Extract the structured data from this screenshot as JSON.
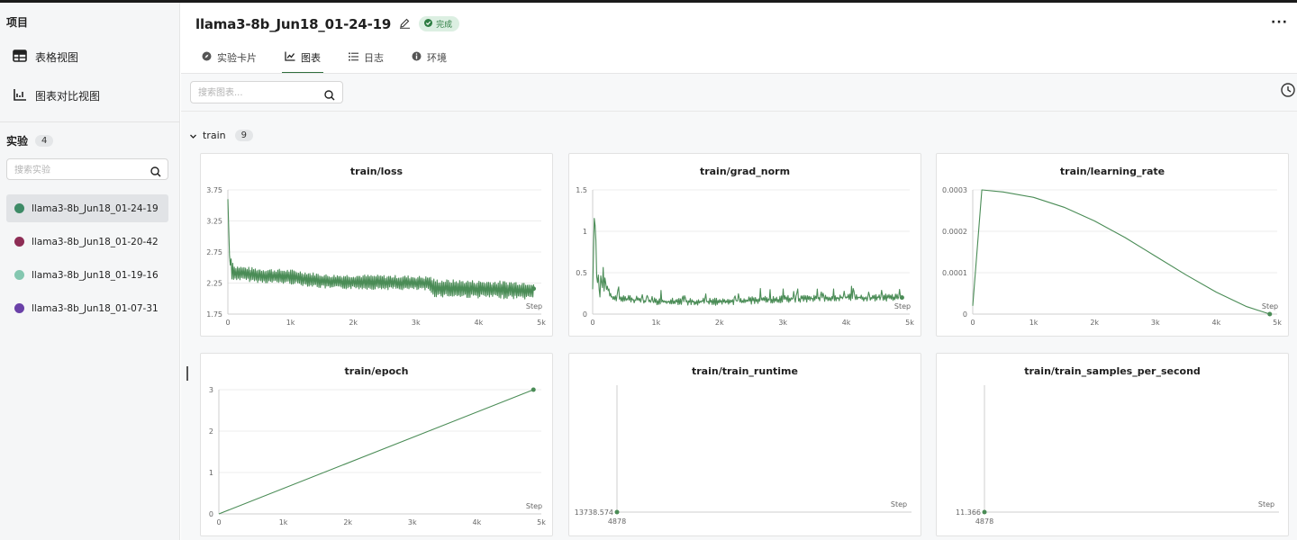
{
  "sidebar": {
    "title": "项目",
    "views": [
      {
        "label": "表格视图",
        "icon": "table-icon"
      },
      {
        "label": "图表对比视图",
        "icon": "chart-compare-icon"
      }
    ],
    "experiments_title": "实验",
    "experiments_count": "4",
    "search_placeholder": "搜索实验",
    "experiments": [
      {
        "name": "llama3-8b_Jun18_01-24-19",
        "color": "#3d8a66"
      },
      {
        "name": "llama3-8b_Jun18_01-20-42",
        "color": "#8e2d55"
      },
      {
        "name": "llama3-8b_Jun18_01-19-16",
        "color": "#84c7b0"
      },
      {
        "name": "llama3-8b_Jun18_01-07-31",
        "color": "#6a41a8"
      }
    ]
  },
  "header": {
    "run_name": "llama3-8b_Jun18_01-24-19",
    "status": "完成",
    "tabs": [
      {
        "label": "实验卡片",
        "icon": "compass-icon"
      },
      {
        "label": "图表",
        "icon": "line-chart-icon"
      },
      {
        "label": "日志",
        "icon": "list-icon"
      },
      {
        "label": "环境",
        "icon": "info-icon"
      }
    ],
    "active_tab": 1
  },
  "toolbar": {
    "search_placeholder": "搜索图表..."
  },
  "group": {
    "name": "train",
    "count": "9"
  },
  "colors": {
    "series": "#4a8c56",
    "accent": "#2f6f3e"
  },
  "charts": [
    {
      "title": "train/loss",
      "step_label": "Step"
    },
    {
      "title": "train/grad_norm",
      "step_label": "Step"
    },
    {
      "title": "train/learning_rate",
      "step_label": "Step"
    },
    {
      "title": "train/epoch",
      "step_label": "Step"
    },
    {
      "title": "train/train_runtime",
      "step_label": "Step"
    },
    {
      "title": "train/train_samples_per_second",
      "step_label": "Step"
    }
  ],
  "chart_data": [
    {
      "type": "line",
      "title": "train/loss",
      "xlabel": "Step",
      "xlim": [
        0,
        5000
      ],
      "ylim": [
        1.75,
        3.75
      ],
      "xticks": [
        "0",
        "1k",
        "2k",
        "3k",
        "4k",
        "5k"
      ],
      "yticks": [
        "1.75",
        "2.25",
        "2.75",
        "3.25",
        "3.75"
      ],
      "series": [
        {
          "x": [
            0,
            30,
            100,
            500,
            1000,
            1600,
            2000,
            3000,
            3200,
            3300,
            4000,
            4878
          ],
          "y": [
            3.6,
            2.55,
            2.45,
            2.4,
            2.38,
            2.3,
            2.3,
            2.28,
            2.27,
            2.2,
            2.18,
            2.16
          ]
        }
      ]
    },
    {
      "type": "line",
      "title": "train/grad_norm",
      "xlabel": "Step",
      "xlim": [
        0,
        5000
      ],
      "ylim": [
        0,
        1.5
      ],
      "xticks": [
        "0",
        "1k",
        "2k",
        "3k",
        "4k",
        "5k"
      ],
      "yticks": [
        "0",
        "0.5",
        "1",
        "1.5"
      ],
      "series": [
        {
          "x": [
            0,
            30,
            60,
            100,
            150,
            300,
            1000,
            2000,
            3000,
            4000,
            4878
          ],
          "y": [
            0.3,
            1.3,
            0.5,
            0.2,
            0.45,
            0.2,
            0.15,
            0.15,
            0.18,
            0.2,
            0.2
          ]
        }
      ]
    },
    {
      "type": "line",
      "title": "train/learning_rate",
      "xlabel": "Step",
      "xlim": [
        0,
        5000
      ],
      "ylim": [
        0,
        0.0003
      ],
      "xticks": [
        "0",
        "1k",
        "2k",
        "3k",
        "4k",
        "5k"
      ],
      "yticks": [
        "0",
        "0.0001",
        "0.0002",
        "0.0003"
      ],
      "series": [
        {
          "x": [
            0,
            150,
            500,
            1000,
            1500,
            2000,
            2500,
            3000,
            3500,
            4000,
            4500,
            4878
          ],
          "y": [
            2e-05,
            0.0003,
            0.000295,
            0.000282,
            0.000258,
            0.000225,
            0.000185,
            0.00014,
            9.5e-05,
            5.3e-05,
            1.8e-05,
            0.0
          ]
        }
      ]
    },
    {
      "type": "line",
      "title": "train/epoch",
      "xlabel": "Step",
      "xlim": [
        0,
        5000
      ],
      "ylim": [
        0,
        3
      ],
      "xticks": [
        "0",
        "1k",
        "2k",
        "3k",
        "4k",
        "5k"
      ],
      "yticks": [
        "0",
        "1",
        "2",
        "3"
      ],
      "series": [
        {
          "x": [
            0,
            4878
          ],
          "y": [
            0,
            3
          ]
        }
      ]
    },
    {
      "type": "scatter",
      "title": "train/train_runtime",
      "xlabel": "Step",
      "xticks": [
        "4878"
      ],
      "yticks": [
        "13738.574"
      ],
      "series": [
        {
          "x": [
            4878
          ],
          "y": [
            13738.574
          ]
        }
      ]
    },
    {
      "type": "scatter",
      "title": "train/train_samples_per_second",
      "xlabel": "Step",
      "xticks": [
        "4878"
      ],
      "yticks": [
        "11.366"
      ],
      "series": [
        {
          "x": [
            4878
          ],
          "y": [
            11.366
          ]
        }
      ]
    }
  ]
}
